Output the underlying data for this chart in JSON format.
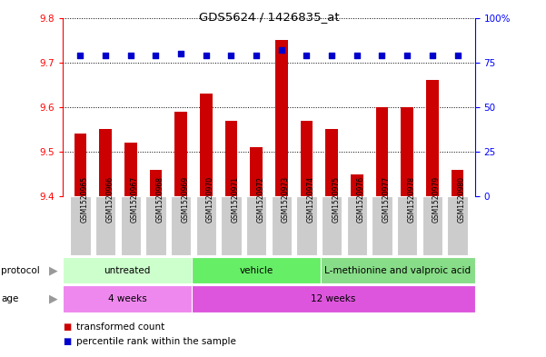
{
  "title": "GDS5624 / 1426835_at",
  "samples": [
    "GSM1520965",
    "GSM1520966",
    "GSM1520967",
    "GSM1520968",
    "GSM1520969",
    "GSM1520970",
    "GSM1520971",
    "GSM1520972",
    "GSM1520973",
    "GSM1520974",
    "GSM1520975",
    "GSM1520976",
    "GSM1520977",
    "GSM1520978",
    "GSM1520979",
    "GSM1520980"
  ],
  "transformed_count": [
    9.54,
    9.55,
    9.52,
    9.46,
    9.59,
    9.63,
    9.57,
    9.51,
    9.75,
    9.57,
    9.55,
    9.45,
    9.6,
    9.6,
    9.66,
    9.46
  ],
  "percentile_rank": [
    79,
    79,
    79,
    79,
    80,
    79,
    79,
    79,
    82,
    79,
    79,
    79,
    79,
    79,
    79,
    79
  ],
  "ylim": [
    9.4,
    9.8
  ],
  "yticks": [
    9.4,
    9.5,
    9.6,
    9.7,
    9.8
  ],
  "right_yticks": [
    0,
    25,
    50,
    75,
    100
  ],
  "right_ylim": [
    0,
    100
  ],
  "bar_color": "#cc0000",
  "dot_color": "#0000cc",
  "protocol_groups": [
    {
      "label": "untreated",
      "start": 0,
      "end": 5,
      "color": "#ccffcc"
    },
    {
      "label": "vehicle",
      "start": 5,
      "end": 10,
      "color": "#66ee66"
    },
    {
      "label": "L-methionine and valproic acid",
      "start": 10,
      "end": 16,
      "color": "#88dd88"
    }
  ],
  "age_groups": [
    {
      "label": "4 weeks",
      "start": 0,
      "end": 5,
      "color": "#ee88ee"
    },
    {
      "label": "12 weeks",
      "start": 5,
      "end": 16,
      "color": "#dd55dd"
    }
  ],
  "legend_items": [
    {
      "color": "#cc0000",
      "label": "transformed count"
    },
    {
      "color": "#0000cc",
      "label": "percentile rank within the sample"
    }
  ],
  "bg_color": "#ffffff",
  "grid_color": "#000000",
  "bar_bottom": 9.4,
  "label_bg": "#cccccc",
  "arrow_color": "#999999"
}
